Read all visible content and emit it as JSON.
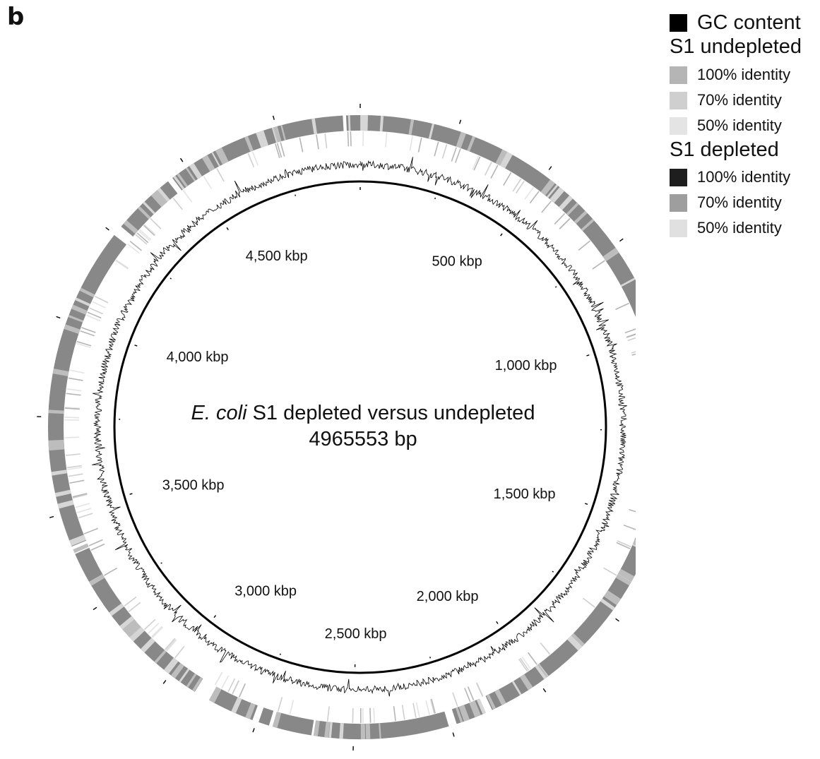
{
  "panel_letter": "b",
  "legend": {
    "gc": {
      "label": "GC content",
      "color": "#000000"
    },
    "undepleted": {
      "heading": "S1 undepleted",
      "items": [
        {
          "label": "100% identity",
          "color": "#b5b5b5"
        },
        {
          "label": "70% identity",
          "color": "#cfcfcf"
        },
        {
          "label": "50% identity",
          "color": "#e4e4e4"
        }
      ]
    },
    "depleted": {
      "heading": "S1 depleted",
      "items": [
        {
          "label": "100% identity",
          "color": "#1e1e1e"
        },
        {
          "label": "70% identity",
          "color": "#9e9e9e"
        },
        {
          "label": "50% identity",
          "color": "#e0e0e0"
        }
      ]
    }
  },
  "map": {
    "title_italic": "E. coli",
    "title_rest": " S1 depleted versus undepleted",
    "genome_length_bp": 4965553,
    "length_label": "4965553 bp",
    "tick_labels": [
      "500 kbp",
      "1,000 kbp",
      "1,500 kbp",
      "2,000 kbp",
      "2,500 kbp",
      "3,000 kbp",
      "3,500 kbp",
      "4,000 kbp",
      "4,500 kbp"
    ],
    "tick_positions_kbp": [
      500,
      1000,
      1500,
      2000,
      2500,
      3000,
      3500,
      4000,
      4500
    ]
  }
}
